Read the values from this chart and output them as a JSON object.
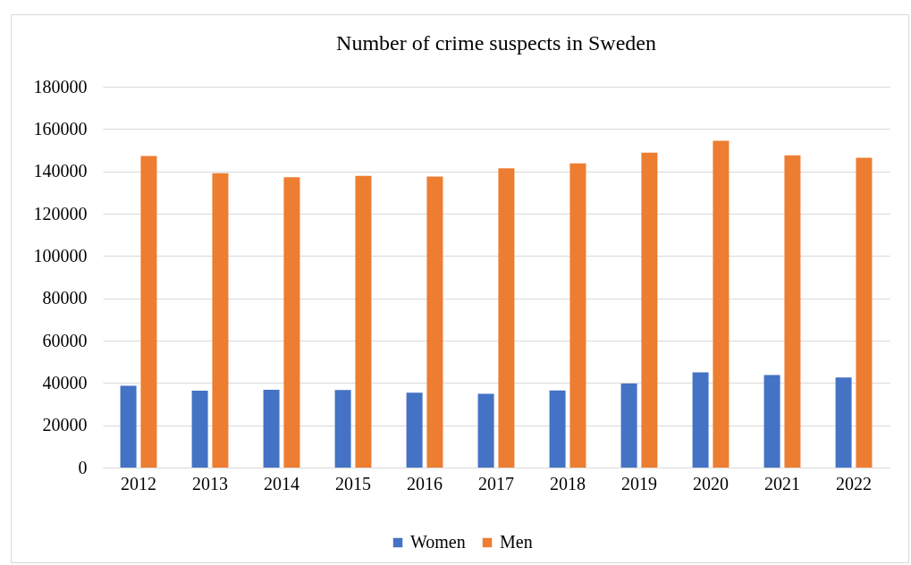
{
  "chart_data": {
    "type": "bar",
    "title": "Number of crime suspects in Sweden",
    "categories": [
      "2012",
      "2013",
      "2014",
      "2015",
      "2016",
      "2017",
      "2018",
      "2019",
      "2020",
      "2021",
      "2022"
    ],
    "series": [
      {
        "name": "Women",
        "color": "#4472c4",
        "values": [
          38700,
          36300,
          36800,
          36700,
          35400,
          34900,
          36400,
          39700,
          45000,
          43700,
          42600
        ]
      },
      {
        "name": "Men",
        "color": "#ed7d31",
        "values": [
          147300,
          139100,
          137200,
          137800,
          137500,
          141400,
          143800,
          148800,
          154400,
          147600,
          146400
        ]
      }
    ],
    "ylim": [
      0,
      180000
    ],
    "yticks": [
      0,
      20000,
      40000,
      60000,
      80000,
      100000,
      120000,
      140000,
      160000,
      180000
    ],
    "grid": "y",
    "legend": "bottom"
  }
}
